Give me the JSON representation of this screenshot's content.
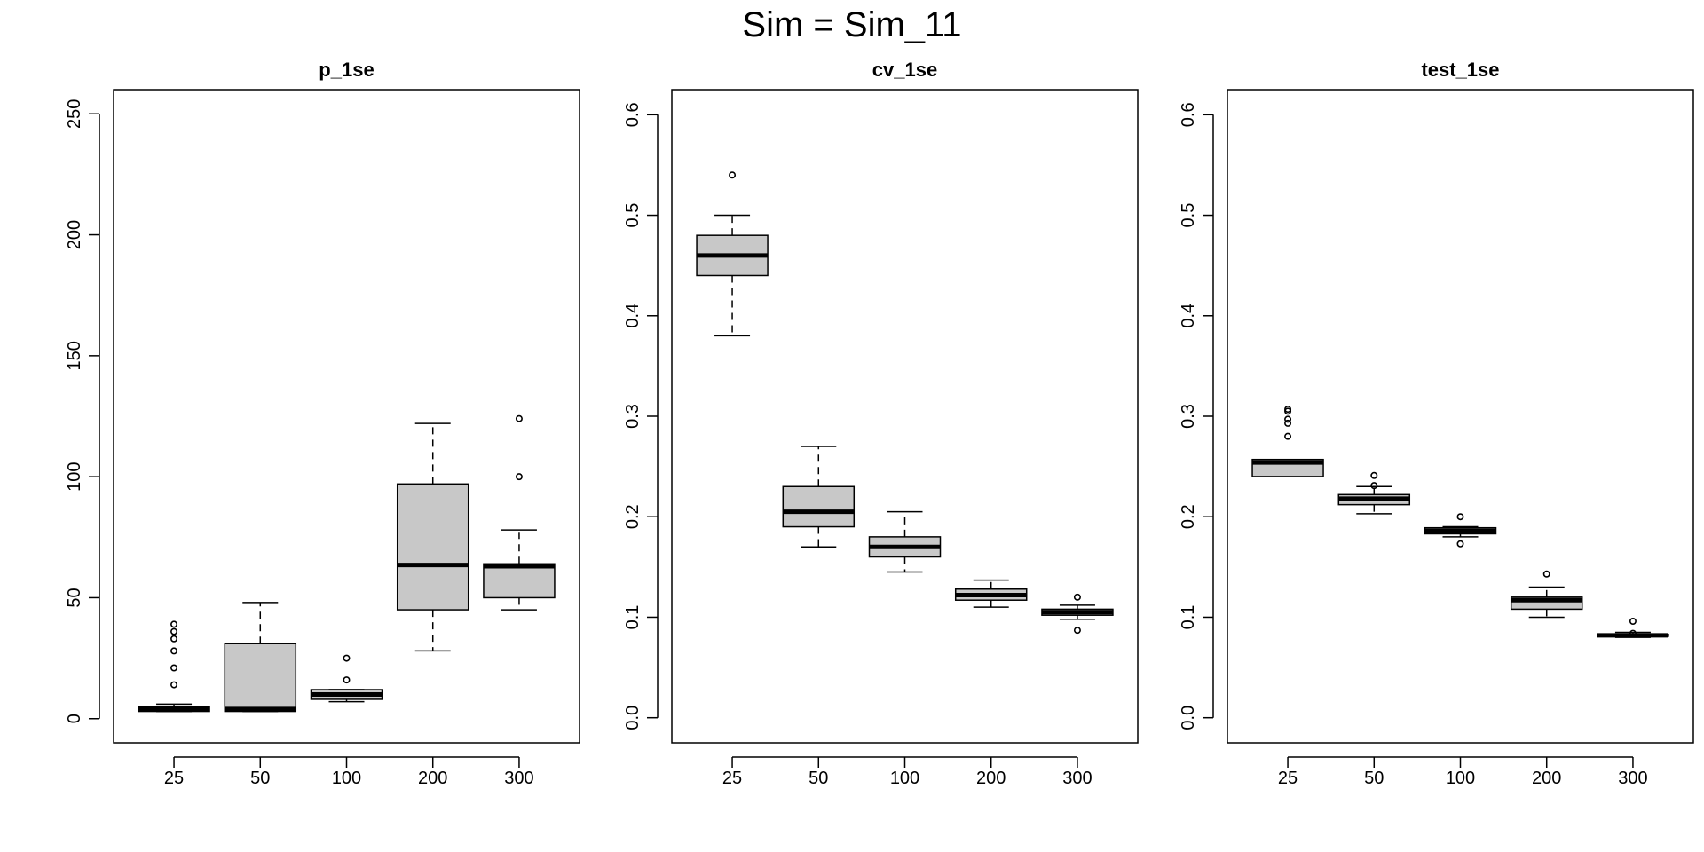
{
  "figure": {
    "title": "Sim = Sim_11"
  },
  "chart_data": [
    {
      "type": "box",
      "title": "p_1se",
      "xlabel": "",
      "ylabel": "",
      "categories": [
        "25",
        "50",
        "100",
        "200",
        "300"
      ],
      "ylim": [
        -10,
        260
      ],
      "yticks": [
        0,
        50,
        100,
        150,
        200,
        250
      ],
      "boxes": [
        {
          "min": 3,
          "q1": 3,
          "median": 4,
          "q3": 5,
          "max": 6,
          "outliers": [
            14,
            21,
            28,
            33,
            36,
            39
          ]
        },
        {
          "min": 3,
          "q1": 3,
          "median": 4,
          "q3": 31,
          "max": 48,
          "outliers": []
        },
        {
          "min": 7,
          "q1": 8,
          "median": 10,
          "q3": 12,
          "max": 12,
          "outliers": [
            16,
            25
          ]
        },
        {
          "min": 28,
          "q1": 45,
          "median": 63.5,
          "q3": 97,
          "max": 122,
          "outliers": []
        },
        {
          "min": 45,
          "q1": 50,
          "median": 63,
          "q3": 64,
          "max": 78,
          "outliers": [
            100,
            124
          ]
        }
      ]
    },
    {
      "type": "box",
      "title": "cv_1se",
      "xlabel": "",
      "ylabel": "",
      "categories": [
        "25",
        "50",
        "100",
        "200",
        "300"
      ],
      "ylim": [
        -0.025,
        0.625
      ],
      "yticks": [
        "0.0",
        "0.1",
        "0.2",
        "0.3",
        "0.4",
        "0.5",
        "0.6"
      ],
      "boxes": [
        {
          "min": 0.38,
          "q1": 0.44,
          "median": 0.46,
          "q3": 0.48,
          "max": 0.5,
          "outliers": [
            0.54
          ]
        },
        {
          "min": 0.17,
          "q1": 0.19,
          "median": 0.205,
          "q3": 0.23,
          "max": 0.27,
          "outliers": []
        },
        {
          "min": 0.145,
          "q1": 0.16,
          "median": 0.17,
          "q3": 0.18,
          "max": 0.205,
          "outliers": []
        },
        {
          "min": 0.11,
          "q1": 0.117,
          "median": 0.122,
          "q3": 0.128,
          "max": 0.137,
          "outliers": []
        },
        {
          "min": 0.098,
          "q1": 0.102,
          "median": 0.105,
          "q3": 0.108,
          "max": 0.112,
          "outliers": [
            0.087,
            0.12
          ]
        }
      ]
    },
    {
      "type": "box",
      "title": "test_1se",
      "xlabel": "",
      "ylabel": "",
      "categories": [
        "25",
        "50",
        "100",
        "200",
        "300"
      ],
      "ylim": [
        -0.025,
        0.625
      ],
      "yticks": [
        "0.0",
        "0.1",
        "0.2",
        "0.3",
        "0.4",
        "0.5",
        "0.6"
      ],
      "boxes": [
        {
          "min": 0.24,
          "q1": 0.24,
          "median": 0.254,
          "q3": 0.257,
          "max": 0.257,
          "outliers": [
            0.28,
            0.293,
            0.297,
            0.305,
            0.307
          ]
        },
        {
          "min": 0.203,
          "q1": 0.212,
          "median": 0.218,
          "q3": 0.222,
          "max": 0.23,
          "outliers": [
            0.241,
            0.231
          ]
        },
        {
          "min": 0.18,
          "q1": 0.183,
          "median": 0.186,
          "q3": 0.189,
          "max": 0.19,
          "outliers": [
            0.173,
            0.2
          ]
        },
        {
          "min": 0.1,
          "q1": 0.108,
          "median": 0.117,
          "q3": 0.12,
          "max": 0.13,
          "outliers": [
            0.143
          ]
        },
        {
          "min": 0.08,
          "q1": 0.081,
          "median": 0.082,
          "q3": 0.083,
          "max": 0.085,
          "outliers": [
            0.096,
            0.084
          ]
        }
      ]
    }
  ],
  "colors": {
    "box_fill": "#c8c8c8",
    "stroke": "#000000",
    "background": "#ffffff"
  }
}
